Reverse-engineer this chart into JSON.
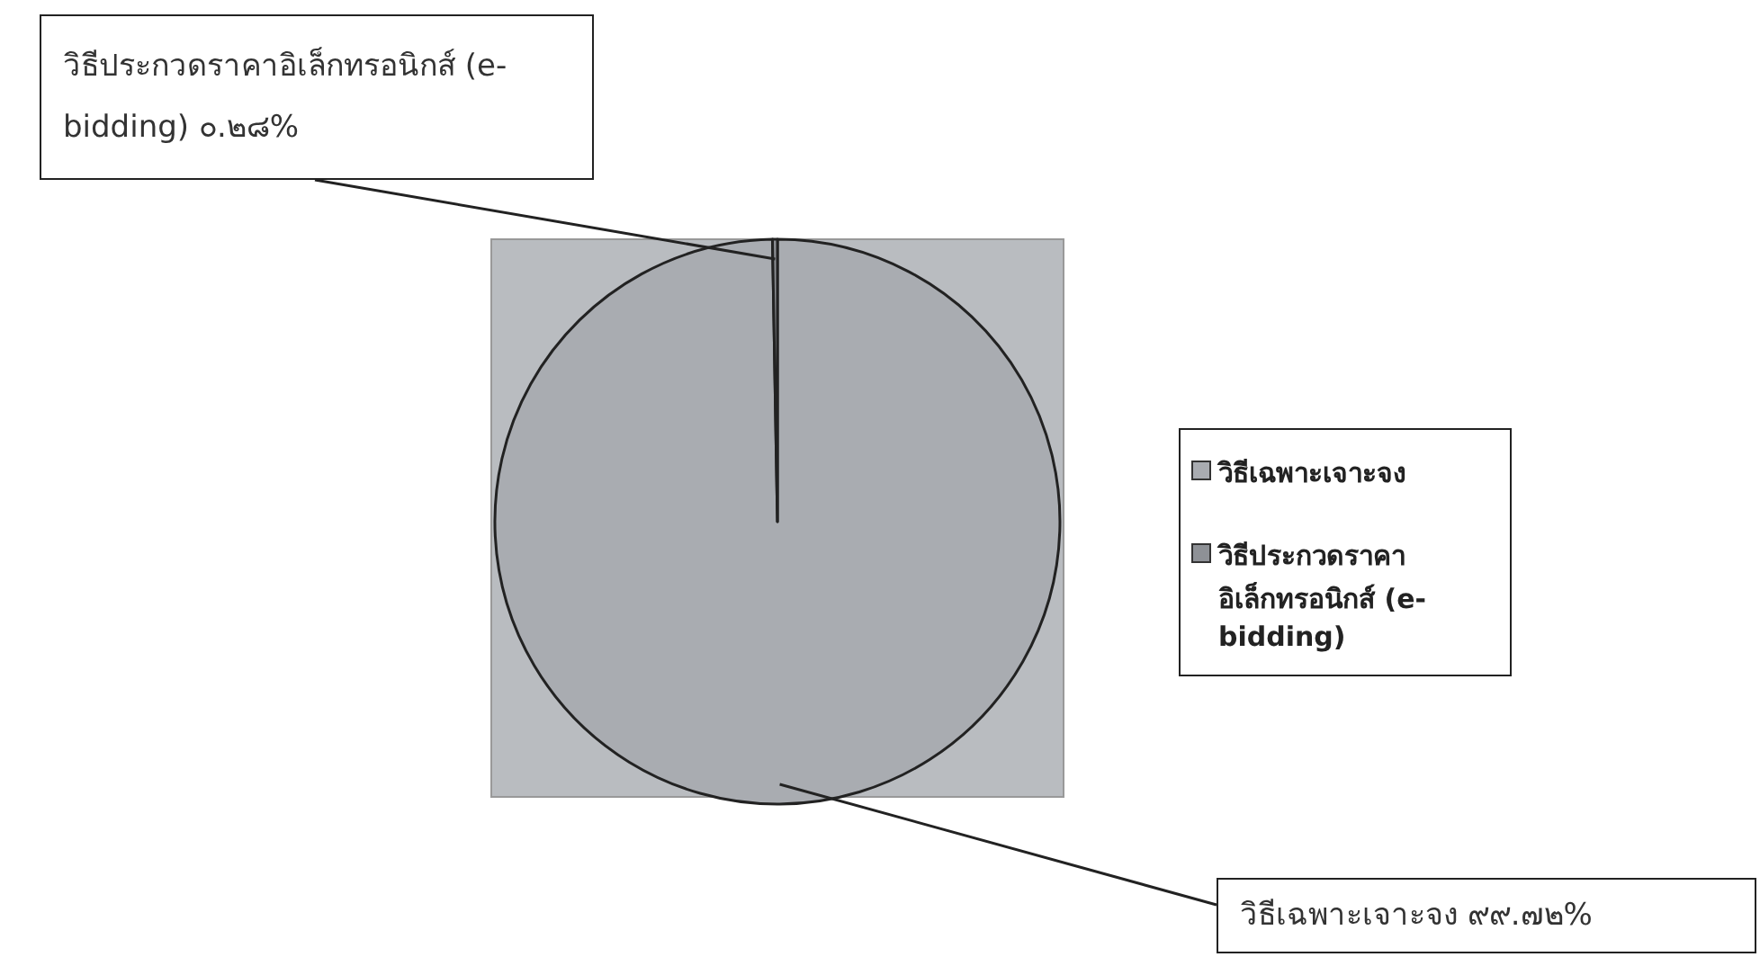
{
  "chart_data": {
    "type": "pie",
    "categories": [
      "วิธีเฉพาะเจาะจง",
      "วิธีประกวดราคาอิเล็กทรอนิกส์ (e-bidding)"
    ],
    "values": [
      99.72,
      0.28
    ],
    "colors": [
      "#a9acb1",
      "#8e9196"
    ],
    "value_labels": [
      "๙๙.๗๒%",
      "๐.๒๘%"
    ],
    "legend": "right"
  }
}
